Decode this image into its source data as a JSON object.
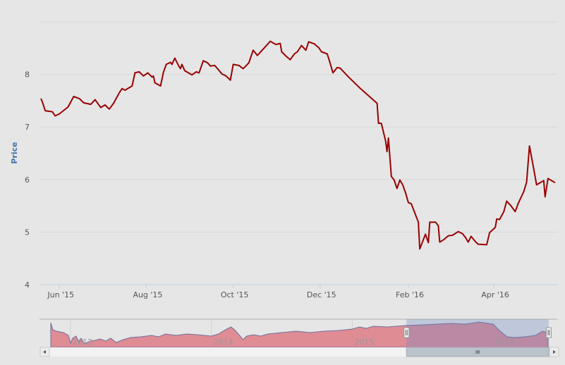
{
  "chart_data": {
    "type": "line",
    "title": "",
    "xlabel": "",
    "ylabel": "Price",
    "x_unit": "days since 2015-06-01",
    "xlim": [
      -14,
      349.5
    ],
    "ylim": [
      4,
      9
    ],
    "yticks": [
      4,
      5,
      6,
      7,
      8
    ],
    "xticks": [
      {
        "day": 0,
        "label": "Jun '15"
      },
      {
        "day": 61,
        "label": "Aug '15"
      },
      {
        "day": 122,
        "label": "Oct '15"
      },
      {
        "day": 183,
        "label": "Dec '15"
      },
      {
        "day": 245,
        "label": "Feb '16"
      },
      {
        "day": 305,
        "label": "Apr '16"
      }
    ],
    "grid": true,
    "legend": "none",
    "line_color": "#990000",
    "series": [
      {
        "name": "Price",
        "points": [
          [
            -13,
            7.54
          ],
          [
            -12,
            7.48
          ],
          [
            -10,
            7.31
          ],
          [
            -5,
            7.29
          ],
          [
            -3,
            7.21
          ],
          [
            0,
            7.25
          ],
          [
            6,
            7.38
          ],
          [
            10,
            7.58
          ],
          [
            14,
            7.54
          ],
          [
            17,
            7.46
          ],
          [
            22,
            7.43
          ],
          [
            25,
            7.52
          ],
          [
            29,
            7.37
          ],
          [
            32,
            7.42
          ],
          [
            35,
            7.34
          ],
          [
            38,
            7.45
          ],
          [
            42,
            7.65
          ],
          [
            44,
            7.73
          ],
          [
            46,
            7.7
          ],
          [
            51,
            7.78
          ],
          [
            53,
            8.03
          ],
          [
            56,
            8.05
          ],
          [
            59,
            7.97
          ],
          [
            62,
            8.03
          ],
          [
            65,
            7.95
          ],
          [
            66,
            7.97
          ],
          [
            67,
            7.84
          ],
          [
            71,
            7.78
          ],
          [
            73,
            8.04
          ],
          [
            75,
            8.19
          ],
          [
            78,
            8.23
          ],
          [
            79,
            8.19
          ],
          [
            81,
            8.31
          ],
          [
            84,
            8.15
          ],
          [
            85,
            8.11
          ],
          [
            86,
            8.19
          ],
          [
            88,
            8.07
          ],
          [
            93,
            7.99
          ],
          [
            96,
            8.05
          ],
          [
            98,
            8.03
          ],
          [
            101,
            8.26
          ],
          [
            104,
            8.22
          ],
          [
            106,
            8.16
          ],
          [
            109,
            8.17
          ],
          [
            111,
            8.11
          ],
          [
            114,
            8.01
          ],
          [
            117,
            7.97
          ],
          [
            120,
            7.89
          ],
          [
            122,
            8.19
          ],
          [
            126,
            8.17
          ],
          [
            129,
            8.11
          ],
          [
            133,
            8.22
          ],
          [
            136,
            8.46
          ],
          [
            139,
            8.36
          ],
          [
            143,
            8.48
          ],
          [
            148,
            8.63
          ],
          [
            152,
            8.57
          ],
          [
            155,
            8.59
          ],
          [
            156,
            8.43
          ],
          [
            159,
            8.35
          ],
          [
            162,
            8.28
          ],
          [
            165,
            8.39
          ],
          [
            167,
            8.43
          ],
          [
            170,
            8.55
          ],
          [
            173,
            8.46
          ],
          [
            175,
            8.62
          ],
          [
            179,
            8.58
          ],
          [
            182,
            8.51
          ],
          [
            184,
            8.43
          ],
          [
            188,
            8.39
          ],
          [
            190,
            8.22
          ],
          [
            192,
            8.03
          ],
          [
            195,
            8.13
          ],
          [
            197,
            8.12
          ],
          [
            203,
            7.95
          ],
          [
            211,
            7.74
          ],
          [
            223,
            7.45
          ],
          [
            224,
            7.07
          ],
          [
            226,
            7.07
          ],
          [
            229,
            6.73
          ],
          [
            230,
            6.53
          ],
          [
            231,
            6.79
          ],
          [
            233,
            6.06
          ],
          [
            235,
            5.99
          ],
          [
            237,
            5.83
          ],
          [
            239,
            5.99
          ],
          [
            241,
            5.9
          ],
          [
            243,
            5.75
          ],
          [
            245,
            5.56
          ],
          [
            247,
            5.54
          ],
          [
            252,
            5.19
          ],
          [
            253,
            4.68
          ],
          [
            257,
            4.96
          ],
          [
            259,
            4.8
          ],
          [
            260,
            5.19
          ],
          [
            264,
            5.19
          ],
          [
            266,
            5.12
          ],
          [
            267,
            4.81
          ],
          [
            270,
            4.86
          ],
          [
            273,
            4.93
          ],
          [
            276,
            4.94
          ],
          [
            280,
            5.01
          ],
          [
            283,
            4.97
          ],
          [
            285,
            4.9
          ],
          [
            287,
            4.81
          ],
          [
            289,
            4.92
          ],
          [
            292,
            4.82
          ],
          [
            294,
            4.77
          ],
          [
            300,
            4.76
          ],
          [
            302,
            4.99
          ],
          [
            306,
            5.09
          ],
          [
            307,
            5.25
          ],
          [
            309,
            5.24
          ],
          [
            312,
            5.39
          ],
          [
            314,
            5.59
          ],
          [
            317,
            5.5
          ],
          [
            320,
            5.39
          ],
          [
            322,
            5.54
          ],
          [
            326,
            5.77
          ],
          [
            328,
            5.95
          ],
          [
            330,
            6.64
          ],
          [
            333,
            6.2
          ],
          [
            335,
            5.9
          ],
          [
            340,
            5.98
          ],
          [
            341,
            5.67
          ],
          [
            343,
            6.02
          ],
          [
            348,
            5.94
          ]
        ]
      }
    ],
    "navigator": {
      "xlim": [
        2012.85,
        2016.4
      ],
      "ylim": [
        1,
        10
      ],
      "fill_color": "#df8c95",
      "line_color": "#6f6f9a",
      "selected_range": [
        2015.385,
        2016.395
      ],
      "year_labels": [
        {
          "year": 2013,
          "label": "2013"
        },
        {
          "year": 2014,
          "label": "2014"
        },
        {
          "year": 2015,
          "label": "2015"
        },
        {
          "year": 2016,
          "label": "2016"
        }
      ],
      "points": [
        [
          2012.86,
          8.88
        ],
        [
          2012.875,
          6.63
        ],
        [
          2012.9,
          6.18
        ],
        [
          2012.95,
          5.73
        ],
        [
          2012.985,
          4.83
        ],
        [
          2013.0,
          2.35
        ],
        [
          2013.015,
          3.93
        ],
        [
          2013.04,
          4.6
        ],
        [
          2013.06,
          2.58
        ],
        [
          2013.075,
          3.93
        ],
        [
          2013.1,
          2.13
        ],
        [
          2013.14,
          3.03
        ],
        [
          2013.175,
          3.25
        ],
        [
          2013.21,
          3.7
        ],
        [
          2013.25,
          3.03
        ],
        [
          2013.285,
          3.93
        ],
        [
          2013.325,
          2.58
        ],
        [
          2013.375,
          3.48
        ],
        [
          2013.425,
          4.15
        ],
        [
          2013.5,
          4.38
        ],
        [
          2013.575,
          4.83
        ],
        [
          2013.625,
          4.38
        ],
        [
          2013.675,
          5.28
        ],
        [
          2013.75,
          4.83
        ],
        [
          2013.825,
          5.28
        ],
        [
          2013.9,
          5.05
        ],
        [
          2014.0,
          4.6
        ],
        [
          2014.05,
          5.28
        ],
        [
          2014.1,
          6.63
        ],
        [
          2014.14,
          7.53
        ],
        [
          2014.165,
          6.63
        ],
        [
          2014.2,
          4.83
        ],
        [
          2014.225,
          3.48
        ],
        [
          2014.25,
          4.6
        ],
        [
          2014.3,
          5.05
        ],
        [
          2014.35,
          4.6
        ],
        [
          2014.4,
          5.28
        ],
        [
          2014.5,
          5.73
        ],
        [
          2014.6,
          6.18
        ],
        [
          2014.7,
          5.73
        ],
        [
          2014.8,
          6.18
        ],
        [
          2014.9,
          6.4
        ],
        [
          2015.0,
          6.85
        ],
        [
          2015.05,
          7.53
        ],
        [
          2015.1,
          7.08
        ],
        [
          2015.15,
          7.75
        ],
        [
          2015.25,
          7.53
        ],
        [
          2015.375,
          7.98
        ],
        [
          2015.5,
          8.2
        ],
        [
          2015.6,
          8.43
        ],
        [
          2015.7,
          8.65
        ],
        [
          2015.8,
          8.43
        ],
        [
          2015.9,
          9.1
        ],
        [
          2016.0,
          8.43
        ],
        [
          2016.05,
          6.18
        ],
        [
          2016.1,
          4.38
        ],
        [
          2016.15,
          4.15
        ],
        [
          2016.225,
          4.38
        ],
        [
          2016.3,
          4.83
        ],
        [
          2016.35,
          6.18
        ],
        [
          2016.39,
          5.73
        ]
      ]
    }
  }
}
